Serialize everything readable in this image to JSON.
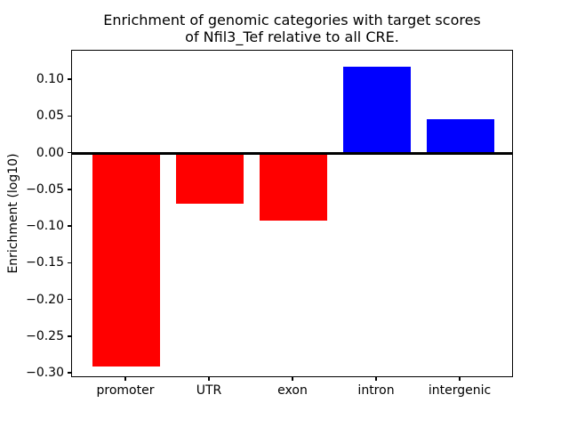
{
  "chart_data": {
    "type": "bar",
    "title": "Enrichment of genomic categories with target scores of Nfil3_Tef relative to all CRE.",
    "title_lines": [
      "Enrichment of genomic categories with target scores",
      "of Nfil3_Tef relative to all CRE."
    ],
    "xlabel": "",
    "ylabel": "Enrichment (log10)",
    "categories": [
      "promoter",
      "UTR",
      "exon",
      "intron",
      "intergenic"
    ],
    "values": [
      -0.29,
      -0.069,
      -0.092,
      0.118,
      0.047
    ],
    "bar_colors": [
      "#ff0000",
      "#ff0000",
      "#ff0000",
      "#0000ff",
      "#0000ff"
    ],
    "negative_color": "#ff0000",
    "positive_color": "#0000ff",
    "ylim": [
      -0.306,
      0.14
    ],
    "yticks": [
      {
        "label": "0.10",
        "value": 0.1
      },
      {
        "label": "0.05",
        "value": 0.05
      },
      {
        "label": "0.00",
        "value": 0.0
      },
      {
        "label": "−0.05",
        "value": -0.05
      },
      {
        "label": "−0.10",
        "value": -0.1
      },
      {
        "label": "−0.15",
        "value": -0.15
      },
      {
        "label": "−0.20",
        "value": -0.2
      },
      {
        "label": "−0.25",
        "value": -0.25
      },
      {
        "label": "−0.30",
        "value": -0.3
      }
    ],
    "zero_line": true,
    "grid": false,
    "legend": null
  }
}
